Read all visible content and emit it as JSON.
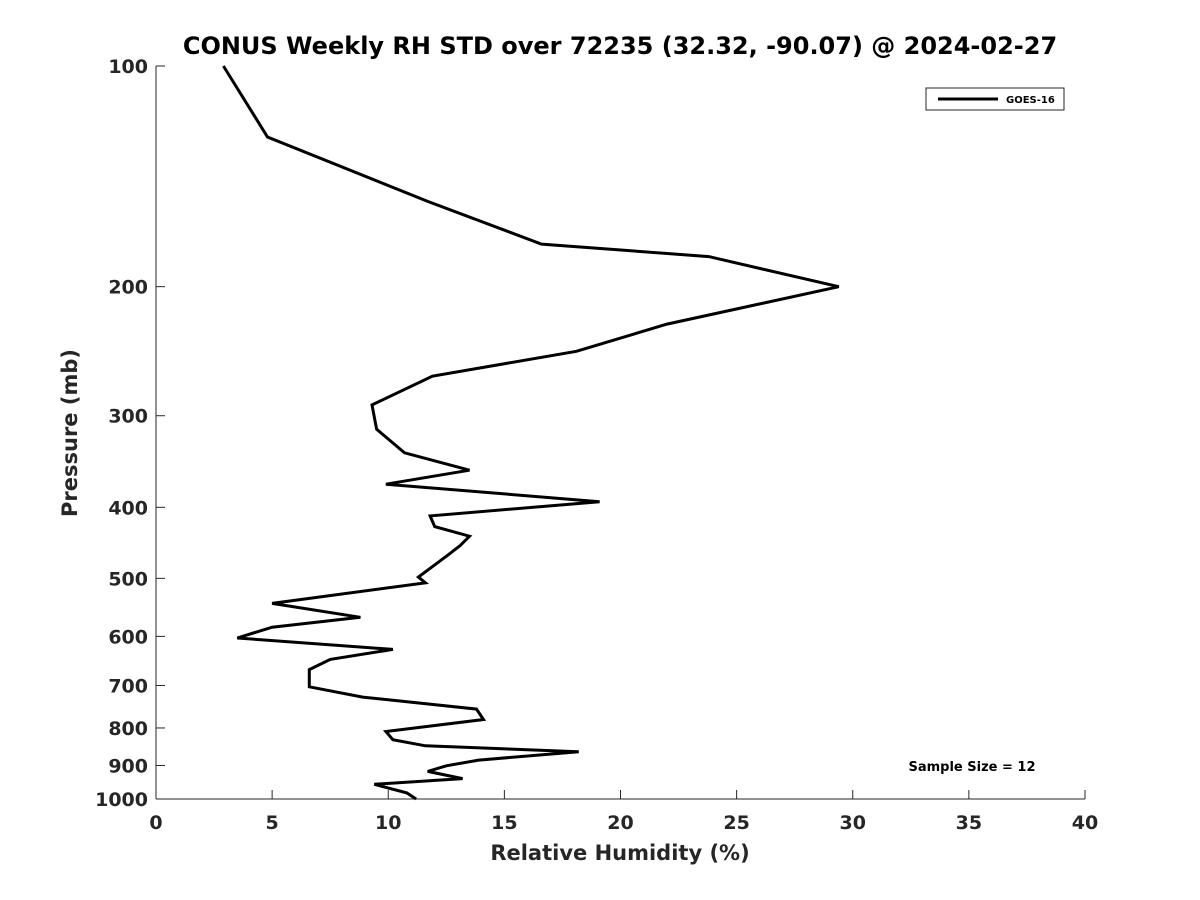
{
  "chart_data": {
    "type": "line",
    "title": "CONUS Weekly RH STD over 72235 (32.32, -90.07) @ 2024-02-27",
    "xlabel": "Relative Humidity (%)",
    "ylabel": "Pressure (mb)",
    "xlim": [
      0,
      40
    ],
    "ylim": [
      100,
      1000
    ],
    "y_scale": "log",
    "y_reversed": true,
    "x_ticks": [
      0,
      5,
      10,
      15,
      20,
      25,
      30,
      35,
      40
    ],
    "x_tick_labels": [
      "0",
      "5",
      "10",
      "15",
      "20",
      "25",
      "30",
      "35",
      "40"
    ],
    "y_ticks": [
      100,
      200,
      300,
      400,
      500,
      600,
      700,
      800,
      900,
      1000
    ],
    "y_tick_labels": [
      "100",
      "200",
      "300",
      "400",
      "500",
      "600",
      "700",
      "800",
      "900",
      "1000"
    ],
    "grid": false,
    "legend_position": "top-right",
    "annotation": "Sample Size = 12",
    "series": [
      {
        "name": "GOES-16",
        "color": "#000000",
        "points": [
          [
            2.9,
            100
          ],
          [
            4.8,
            125
          ],
          [
            11.7,
            153
          ],
          [
            16.6,
            175
          ],
          [
            23.8,
            182
          ],
          [
            29.4,
            200
          ],
          [
            22.0,
            225
          ],
          [
            18.1,
            245
          ],
          [
            11.9,
            265
          ],
          [
            9.3,
            290
          ],
          [
            9.5,
            313
          ],
          [
            10.7,
            337
          ],
          [
            13.5,
            356
          ],
          [
            9.9,
            372
          ],
          [
            19.1,
            393
          ],
          [
            11.8,
            411
          ],
          [
            12.0,
            425
          ],
          [
            13.5,
            438
          ],
          [
            13.1,
            451
          ],
          [
            12.6,
            464
          ],
          [
            11.3,
            498
          ],
          [
            11.6,
            507
          ],
          [
            5.0,
            541
          ],
          [
            8.8,
            565
          ],
          [
            5.0,
            583
          ],
          [
            3.5,
            603
          ],
          [
            10.2,
            625
          ],
          [
            7.5,
            645
          ],
          [
            6.6,
            666
          ],
          [
            6.6,
            687
          ],
          [
            6.6,
            703
          ],
          [
            8.9,
            726
          ],
          [
            13.8,
            754
          ],
          [
            14.1,
            779
          ],
          [
            9.9,
            809
          ],
          [
            10.2,
            830
          ],
          [
            11.6,
            846
          ],
          [
            18.2,
            862
          ],
          [
            13.9,
            885
          ],
          [
            12.5,
            901
          ],
          [
            11.7,
            917
          ],
          [
            13.2,
            938
          ],
          [
            9.4,
            955
          ],
          [
            10.8,
            981
          ],
          [
            11.2,
            1000
          ]
        ]
      }
    ]
  }
}
